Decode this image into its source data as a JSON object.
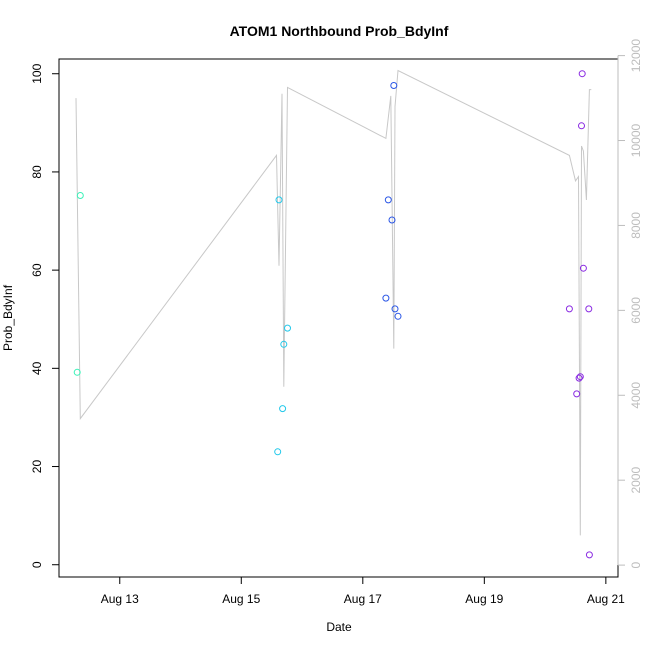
{
  "chart_data": {
    "type": "scatter",
    "title": "ATOM1 Northbound Prob_BdyInf",
    "xlabel": "Date",
    "ylabel": "Prob_BdyInf",
    "x_ticks": [
      "Aug 13",
      "Aug 15",
      "Aug 17",
      "Aug 19",
      "Aug 21"
    ],
    "x_tick_values": [
      13,
      15,
      17,
      19,
      21
    ],
    "xlim": [
      12.0,
      21.2
    ],
    "ylim": [
      -2.5,
      103
    ],
    "y_ticks": [
      0,
      20,
      40,
      60,
      80,
      100
    ],
    "y2lim": [
      -280,
      11920
    ],
    "y2_ticks": [
      0,
      2000,
      4000,
      6000,
      8000,
      10000,
      12000
    ],
    "y2_color": "#bdbdbd",
    "points": [
      {
        "x": 12.3,
        "y": 39.2,
        "color": "#3af2b8"
      },
      {
        "x": 12.35,
        "y": 75.2,
        "color": "#3af2b8"
      },
      {
        "x": 15.6,
        "y": 23.0,
        "color": "#22c8ea"
      },
      {
        "x": 15.62,
        "y": 74.3,
        "color": "#22c8ea"
      },
      {
        "x": 15.68,
        "y": 31.8,
        "color": "#22c8ea"
      },
      {
        "x": 15.7,
        "y": 44.9,
        "color": "#22c8ea"
      },
      {
        "x": 15.76,
        "y": 48.2,
        "color": "#22c8ea"
      },
      {
        "x": 17.38,
        "y": 54.3,
        "color": "#2a56e6"
      },
      {
        "x": 17.42,
        "y": 74.3,
        "color": "#2a56e6"
      },
      {
        "x": 17.48,
        "y": 70.2,
        "color": "#2a56e6"
      },
      {
        "x": 17.51,
        "y": 97.6,
        "color": "#2a56e6"
      },
      {
        "x": 17.53,
        "y": 52.1,
        "color": "#2a56e6"
      },
      {
        "x": 17.58,
        "y": 50.6,
        "color": "#2a56e6"
      },
      {
        "x": 20.4,
        "y": 52.1,
        "color": "#8a2be2"
      },
      {
        "x": 20.52,
        "y": 34.8,
        "color": "#8a2be2"
      },
      {
        "x": 20.56,
        "y": 38.0,
        "color": "#8a2be2"
      },
      {
        "x": 20.58,
        "y": 38.3,
        "color": "#8a2be2"
      },
      {
        "x": 20.6,
        "y": 89.4,
        "color": "#8a2be2"
      },
      {
        "x": 20.61,
        "y": 100.0,
        "color": "#8a2be2"
      },
      {
        "x": 20.63,
        "y": 60.4,
        "color": "#8a2be2"
      },
      {
        "x": 20.72,
        "y": 52.1,
        "color": "#8a2be2"
      },
      {
        "x": 20.73,
        "y": 2.0,
        "color": "#8a2be2"
      }
    ],
    "secondary_line": {
      "color": "#c8c8c8",
      "x": [
        12.28,
        12.35,
        15.58,
        15.62,
        15.67,
        15.7,
        15.76,
        17.38,
        17.46,
        17.51,
        17.53,
        17.58,
        20.4,
        20.5,
        20.55,
        20.58,
        20.6,
        20.63,
        20.68,
        20.73,
        20.76
      ],
      "y": [
        11000,
        3450,
        9650,
        7050,
        11100,
        4200,
        11250,
        10050,
        11050,
        5100,
        10800,
        11650,
        9650,
        9050,
        9150,
        700,
        9870,
        9750,
        8600,
        11200,
        11200
      ]
    }
  }
}
